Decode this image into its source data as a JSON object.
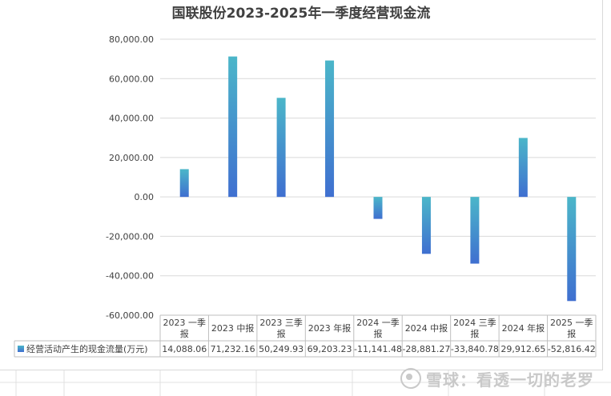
{
  "chart_data": {
    "type": "bar",
    "title": "国联股份2023-2025年一季度经营现金流",
    "categories": [
      [
        "2023 一季",
        "报"
      ],
      [
        "2023 中报"
      ],
      [
        "2023 三季",
        "报"
      ],
      [
        "2023 年报"
      ],
      [
        "2024 一季",
        "报"
      ],
      [
        "2024 中报"
      ],
      [
        "2024 三季",
        "报"
      ],
      [
        "2024 年报"
      ],
      [
        "2025 一季",
        "报"
      ]
    ],
    "series": [
      {
        "name": "经营活动产生的现金流量(万元)",
        "values": [
          14088.06,
          71232.16,
          50249.93,
          69203.23,
          -11141.48,
          -28881.27,
          -33840.78,
          29912.65,
          -52816.42
        ],
        "labels": [
          "14,088.06",
          "71,232.16",
          "50,249.93",
          "69,203.23",
          "-11,141.48",
          "-28,881.27",
          "-33,840.78",
          "29,912.65",
          "-52,816.42"
        ]
      }
    ],
    "yticks": [
      80000,
      60000,
      40000,
      20000,
      0,
      -20000,
      -40000,
      -60000
    ],
    "ytick_labels": [
      "80,000.00",
      "60,000.00",
      "40,000.00",
      "20,000.00",
      "0.00",
      "-20,000.00",
      "-40,000.00",
      "-60,000.00"
    ],
    "ylim": [
      -60000,
      80000
    ],
    "grid": true,
    "legend": "data-table",
    "colors": {
      "bar_top": "#4bb6c9",
      "bar_bottom": "#3f6fd0",
      "grid": "#d9d9d9",
      "text": "#404040"
    }
  },
  "watermark": "雪球：看透一切的老罗"
}
